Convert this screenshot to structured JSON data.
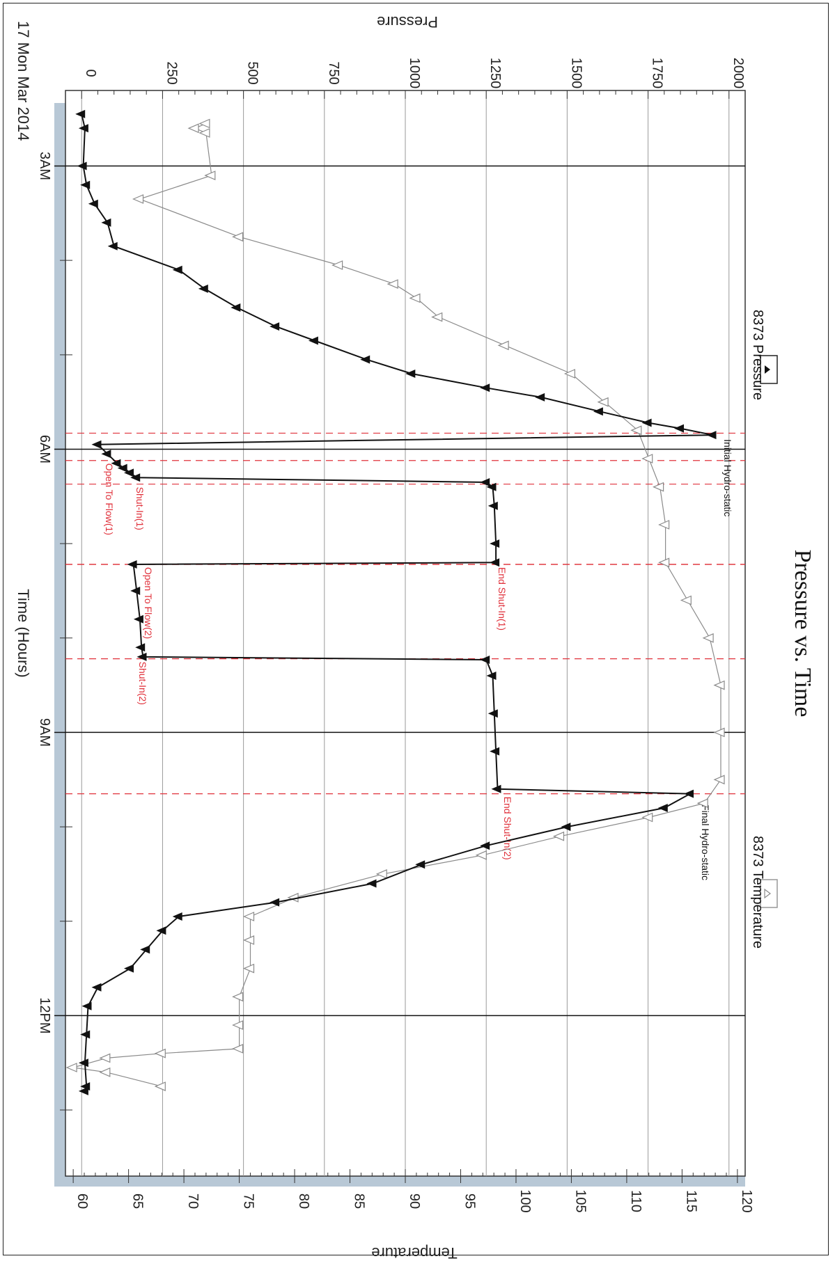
{
  "chart_data": {
    "type": "line",
    "title": "Pressure vs. Time",
    "date_label": "17 Mon Mar 2014",
    "x_axis": {
      "label": "Time (Hours)",
      "range_hours": [
        2.2,
        13.7
      ],
      "ticks": [
        {
          "hour": 3,
          "label": "3AM"
        },
        {
          "hour": 6,
          "label": "6AM"
        },
        {
          "hour": 9,
          "label": "9AM"
        },
        {
          "hour": 12,
          "label": "12PM"
        }
      ],
      "minor_ticks_hours": [
        4,
        5,
        7,
        8,
        10,
        11,
        13
      ]
    },
    "y_left": {
      "label": "Pressure",
      "range": [
        -50,
        2050
      ],
      "ticks": [
        0,
        250,
        500,
        750,
        1000,
        1250,
        1500,
        1750,
        2000
      ]
    },
    "y_right": {
      "label": "Temperature",
      "range": [
        59.3,
        120.7
      ],
      "ticks": [
        60,
        65,
        70,
        75,
        80,
        85,
        90,
        95,
        100,
        105,
        110,
        115,
        120
      ]
    },
    "grid": true,
    "legend_position": "top",
    "series": [
      {
        "name": "8373 Pressure",
        "marker": "filled-triangle",
        "color": "#111111",
        "axis": "left",
        "points": [
          [
            2.45,
            0
          ],
          [
            2.6,
            10
          ],
          [
            3.0,
            5
          ],
          [
            3.2,
            15
          ],
          [
            3.4,
            40
          ],
          [
            3.6,
            80
          ],
          [
            3.85,
            100
          ],
          [
            4.1,
            300
          ],
          [
            4.3,
            380
          ],
          [
            4.5,
            480
          ],
          [
            4.7,
            600
          ],
          [
            4.85,
            720
          ],
          [
            5.05,
            880
          ],
          [
            5.2,
            1020
          ],
          [
            5.35,
            1250
          ],
          [
            5.45,
            1420
          ],
          [
            5.6,
            1600
          ],
          [
            5.72,
            1750
          ],
          [
            5.78,
            1850
          ],
          [
            5.85,
            1950
          ],
          [
            5.95,
            50
          ],
          [
            6.05,
            80
          ],
          [
            6.15,
            110
          ],
          [
            6.2,
            130
          ],
          [
            6.25,
            150
          ],
          [
            6.3,
            170
          ],
          [
            6.35,
            1250
          ],
          [
            6.4,
            1270
          ],
          [
            6.6,
            1275
          ],
          [
            7.0,
            1280
          ],
          [
            7.2,
            1280
          ],
          [
            7.22,
            160
          ],
          [
            7.5,
            170
          ],
          [
            7.8,
            180
          ],
          [
            8.1,
            185
          ],
          [
            8.2,
            190
          ],
          [
            8.23,
            1250
          ],
          [
            8.4,
            1270
          ],
          [
            8.8,
            1275
          ],
          [
            9.2,
            1280
          ],
          [
            9.6,
            1285
          ],
          [
            9.65,
            1880
          ],
          [
            9.8,
            1800
          ],
          [
            10.0,
            1500
          ],
          [
            10.2,
            1250
          ],
          [
            10.4,
            1050
          ],
          [
            10.6,
            900
          ],
          [
            10.8,
            600
          ],
          [
            10.95,
            300
          ],
          [
            11.1,
            250
          ],
          [
            11.3,
            200
          ],
          [
            11.5,
            150
          ],
          [
            11.7,
            50
          ],
          [
            11.9,
            20
          ],
          [
            12.2,
            15
          ],
          [
            12.5,
            10
          ],
          [
            12.75,
            15
          ],
          [
            12.8,
            10
          ]
        ]
      },
      {
        "name": "8373 Temperature",
        "marker": "open-triangle",
        "color": "#8a8a8a",
        "axis": "right",
        "points": [
          [
            2.55,
            72
          ],
          [
            2.6,
            71
          ],
          [
            2.65,
            72
          ],
          [
            3.1,
            72.5
          ],
          [
            3.35,
            66
          ],
          [
            3.75,
            75
          ],
          [
            4.05,
            84
          ],
          [
            4.25,
            89
          ],
          [
            4.4,
            91
          ],
          [
            4.6,
            93
          ],
          [
            4.9,
            99
          ],
          [
            5.2,
            105
          ],
          [
            5.5,
            108
          ],
          [
            5.8,
            111
          ],
          [
            6.1,
            112
          ],
          [
            6.4,
            113
          ],
          [
            6.8,
            113.5
          ],
          [
            7.2,
            113.5
          ],
          [
            7.6,
            115.5
          ],
          [
            8.0,
            117.5
          ],
          [
            8.5,
            118.5
          ],
          [
            9.0,
            118.5
          ],
          [
            9.5,
            118.5
          ],
          [
            9.75,
            117
          ],
          [
            9.9,
            112
          ],
          [
            10.1,
            104
          ],
          [
            10.3,
            97
          ],
          [
            10.5,
            88
          ],
          [
            10.75,
            80
          ],
          [
            10.95,
            76
          ],
          [
            11.2,
            76
          ],
          [
            11.5,
            76
          ],
          [
            11.8,
            75
          ],
          [
            12.1,
            75
          ],
          [
            12.35,
            75
          ],
          [
            12.4,
            68
          ],
          [
            12.45,
            63
          ],
          [
            12.55,
            60
          ],
          [
            12.6,
            63
          ],
          [
            12.75,
            68
          ]
        ]
      }
    ],
    "event_markers": [
      {
        "hour": 5.83,
        "label": ""
      },
      {
        "hour": 6.12,
        "label": "Open To Flow(1)"
      },
      {
        "hour": 6.37,
        "label": "Shut-In(1)"
      },
      {
        "hour": 7.22,
        "label": "End Shut-In(1)"
      },
      {
        "hour": 7.22,
        "label": "Open To Flow(2)"
      },
      {
        "hour": 8.22,
        "label": "Shut-In(2)"
      },
      {
        "hour": 9.65,
        "label": "End Shut-In(2)"
      }
    ],
    "annotations": [
      {
        "hour": 5.85,
        "label": "Initial Hydro-static"
      },
      {
        "hour": 9.72,
        "label": "Final Hydro-static"
      }
    ]
  }
}
